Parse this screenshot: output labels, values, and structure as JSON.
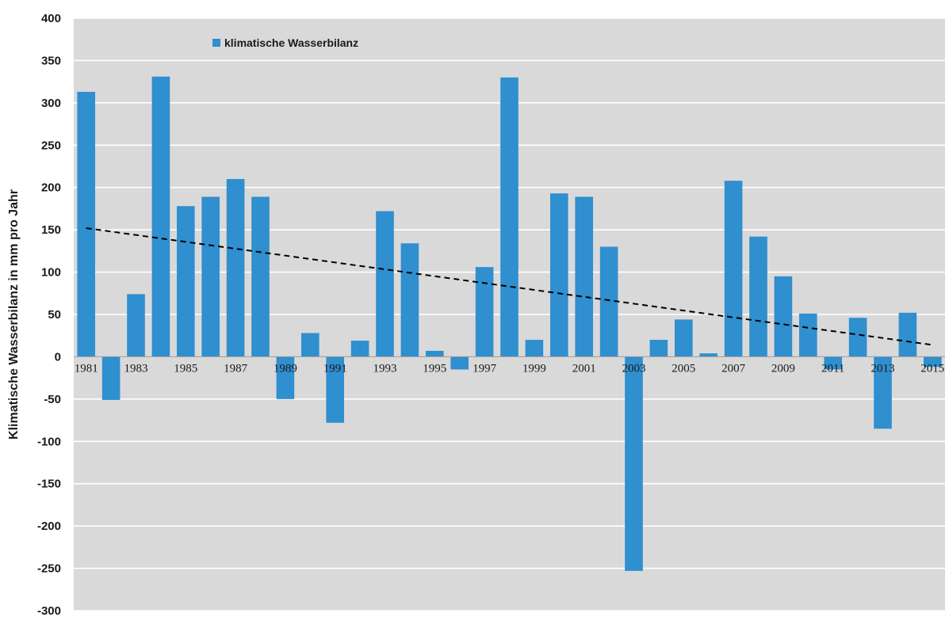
{
  "chart_data": {
    "type": "bar",
    "title": "",
    "xlabel": "",
    "ylabel": "Klimatische Wasserbilanz in mm pro Jahr",
    "ylim": [
      -300,
      400
    ],
    "yticks": [
      400,
      350,
      300,
      250,
      200,
      150,
      100,
      50,
      0,
      -50,
      -100,
      -150,
      -200,
      -250,
      -300
    ],
    "grid": true,
    "legend_position": "top-left",
    "colors": {
      "bar": "#2f8fcf",
      "plot_bg": "#d9d9d9",
      "grid": "#ffffff",
      "trend": "#000000"
    },
    "categories": [
      "1981",
      "1982",
      "1983",
      "1984",
      "1985",
      "1986",
      "1987",
      "1988",
      "1989",
      "1990",
      "1991",
      "1992",
      "1993",
      "1994",
      "1995",
      "1996",
      "1997",
      "1998",
      "1999",
      "2000",
      "2001",
      "2002",
      "2003",
      "2004",
      "2005",
      "2006",
      "2007",
      "2008",
      "2009",
      "2010",
      "2011",
      "2012",
      "2013",
      "2014",
      "2015"
    ],
    "tick_labels": [
      "1981",
      "1983",
      "1985",
      "1987",
      "1989",
      "1991",
      "1993",
      "1995",
      "1997",
      "1999",
      "2001",
      "2003",
      "2005",
      "2007",
      "2009",
      "2011",
      "2013",
      "2015"
    ],
    "series": [
      {
        "name": "klimatische Wasserbilanz",
        "values": [
          313,
          -51,
          74,
          331,
          178,
          189,
          210,
          189,
          -50,
          28,
          -78,
          19,
          172,
          134,
          7,
          -15,
          106,
          330,
          20,
          193,
          189,
          130,
          -253,
          20,
          44,
          4,
          208,
          142,
          95,
          51,
          -15,
          46,
          -85,
          52,
          -12
        ]
      }
    ],
    "trendline": {
      "style": "dashed",
      "start": 152,
      "end": 14
    }
  }
}
